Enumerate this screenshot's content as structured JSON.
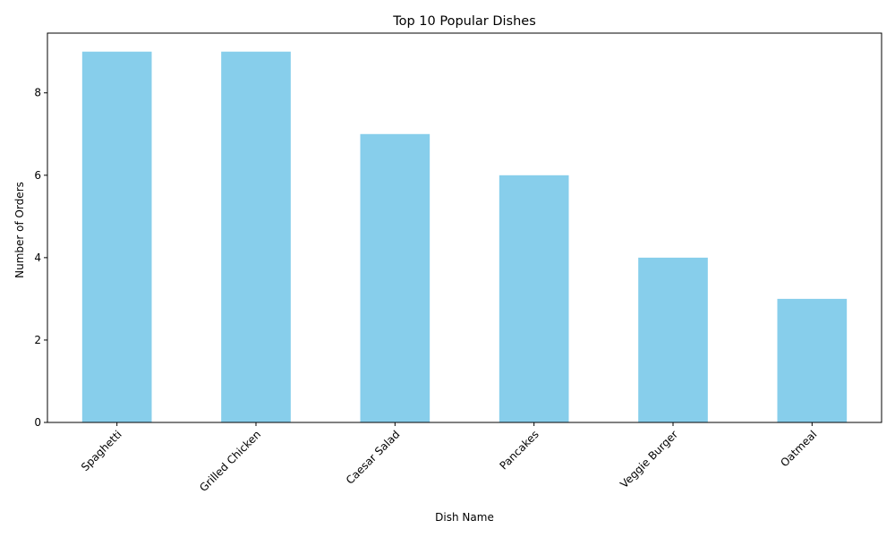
{
  "chart_data": {
    "type": "bar",
    "title": "Top 10 Popular Dishes",
    "xlabel": "Dish Name",
    "ylabel": "Number of Orders",
    "categories": [
      "Spaghetti",
      "Grilled Chicken",
      "Caesar Salad",
      "Pancakes",
      "Veggie Burger",
      "Oatmeal"
    ],
    "values": [
      9,
      9,
      7,
      6,
      4,
      3
    ],
    "ylim": [
      0,
      9.45
    ],
    "yticks": [
      0,
      2,
      4,
      6,
      8
    ],
    "bar_color": "#87CEEB",
    "grid": false,
    "legend": "none"
  }
}
